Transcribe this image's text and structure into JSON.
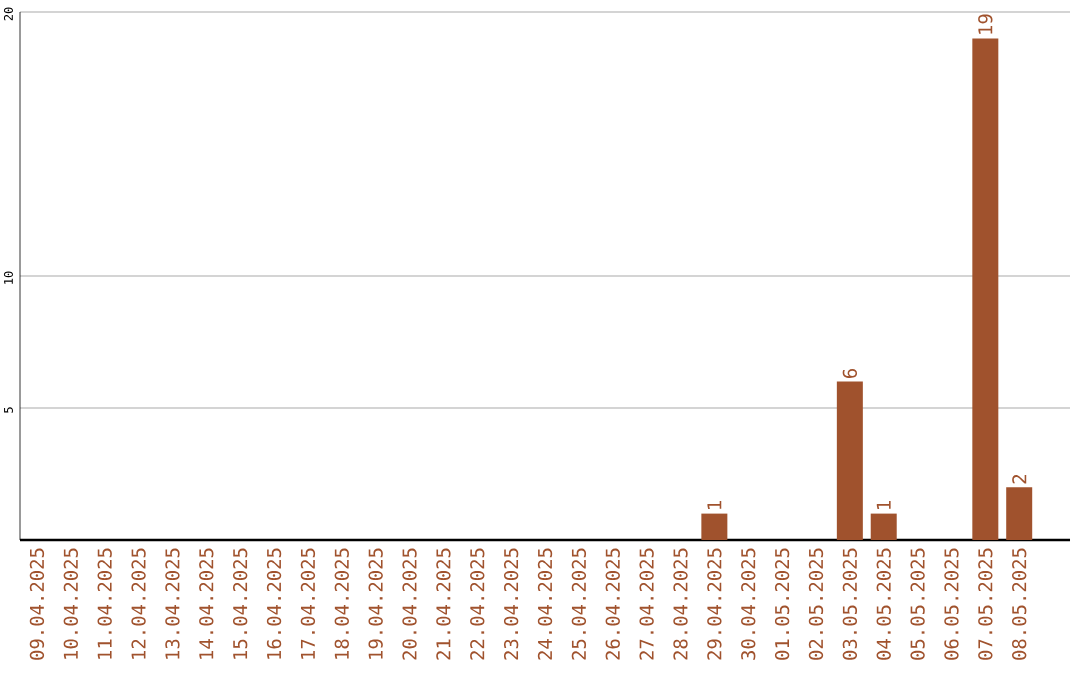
{
  "chart_data": {
    "type": "bar",
    "categories": [
      "09.04.2025",
      "10.04.2025",
      "11.04.2025",
      "12.04.2025",
      "13.04.2025",
      "14.04.2025",
      "15.04.2025",
      "16.04.2025",
      "17.04.2025",
      "18.04.2025",
      "19.04.2025",
      "20.04.2025",
      "21.04.2025",
      "22.04.2025",
      "23.04.2025",
      "24.04.2025",
      "25.04.2025",
      "26.04.2025",
      "27.04.2025",
      "28.04.2025",
      "29.04.2025",
      "30.04.2025",
      "01.05.2025",
      "02.05.2025",
      "03.05.2025",
      "04.05.2025",
      "05.05.2025",
      "06.05.2025",
      "07.05.2025",
      "08.05.2025"
    ],
    "values": [
      0,
      0,
      0,
      0,
      0,
      0,
      0,
      0,
      0,
      0,
      0,
      0,
      0,
      0,
      0,
      0,
      0,
      0,
      0,
      0,
      1,
      0,
      0,
      0,
      6,
      1,
      0,
      0,
      19,
      2
    ],
    "value_labels": [
      null,
      null,
      null,
      null,
      null,
      null,
      null,
      null,
      null,
      null,
      null,
      null,
      null,
      null,
      null,
      null,
      null,
      null,
      null,
      null,
      "1",
      null,
      null,
      null,
      "6",
      "1",
      null,
      null,
      "19",
      "2"
    ],
    "color": "#a0522d",
    "ylim": [
      0,
      20
    ],
    "yticks": [
      5,
      10,
      20
    ],
    "grid": "y"
  }
}
